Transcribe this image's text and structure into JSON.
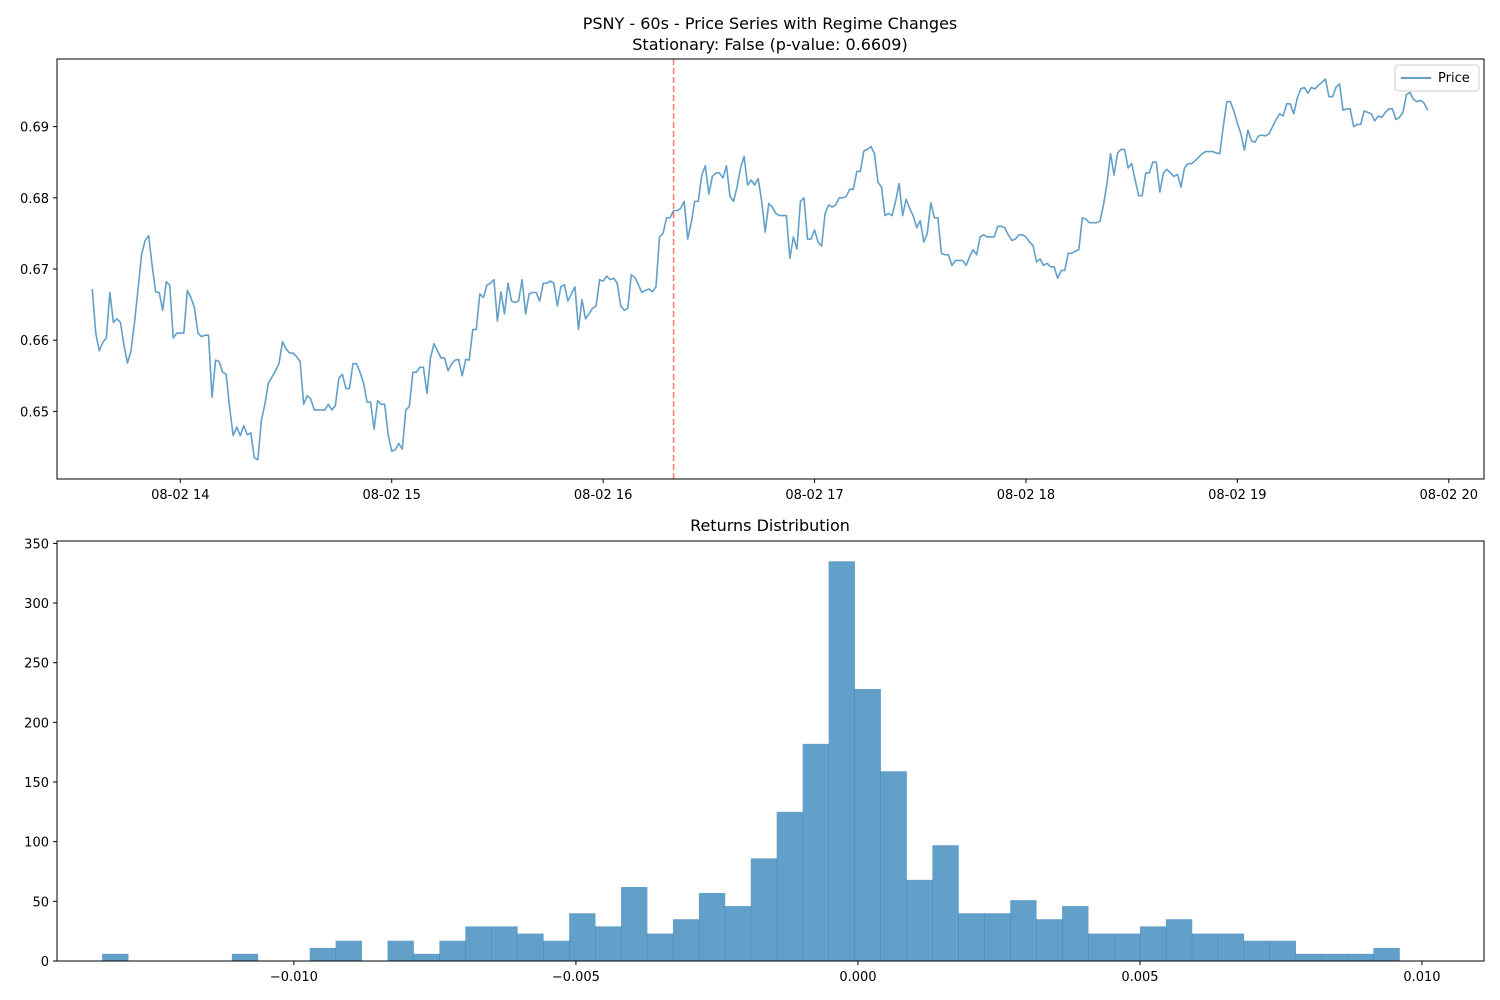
{
  "figure": {
    "background": "#ffffff",
    "accent_color": "#1f77b4",
    "regime_line_color": "#ff0000"
  },
  "chart_data": [
    {
      "type": "line",
      "title": "PSNY - 60s - Price Series with Regime Changes",
      "subtitle": "Stationary: False (p-value: 0.6609)",
      "xlabel": "",
      "ylabel": "",
      "x_start": "08-02 13:35",
      "x_step_minutes": 1,
      "x_ticks": [
        {
          "t": "08-02 14:00",
          "label": "08-02 14"
        },
        {
          "t": "08-02 15:00",
          "label": "08-02 15"
        },
        {
          "t": "08-02 16:00",
          "label": "08-02 16"
        },
        {
          "t": "08-02 17:00",
          "label": "08-02 17"
        },
        {
          "t": "08-02 18:00",
          "label": "08-02 18"
        },
        {
          "t": "08-02 19:00",
          "label": "08-02 19"
        },
        {
          "t": "08-02 20:00",
          "label": "08-02 20"
        }
      ],
      "xlim": [
        "08-02 13:25",
        "08-02 20:10"
      ],
      "ylim": [
        0.6405,
        0.6995
      ],
      "y_ticks": [
        {
          "v": 0.65,
          "label": "0.65"
        },
        {
          "v": 0.66,
          "label": "0.66"
        },
        {
          "v": 0.67,
          "label": "0.67"
        },
        {
          "v": 0.68,
          "label": "0.68"
        },
        {
          "v": 0.69,
          "label": "0.69"
        }
      ],
      "grid": false,
      "legend": {
        "position": "top-right",
        "entries": [
          "Price"
        ]
      },
      "regime_changes": [
        "08-02 16:20"
      ],
      "series": [
        {
          "name": "Price",
          "color": "#1f77b4",
          "values": [
            0.6672,
            0.661,
            0.6585,
            0.6597,
            0.6603,
            0.6667,
            0.6625,
            0.663,
            0.6625,
            0.6593,
            0.6568,
            0.6585,
            0.6625,
            0.6672,
            0.672,
            0.674,
            0.6747,
            0.6705,
            0.6668,
            0.6667,
            0.6642,
            0.6682,
            0.6677,
            0.6603,
            0.661,
            0.661,
            0.661,
            0.667,
            0.666,
            0.6646,
            0.661,
            0.6605,
            0.6607,
            0.6607,
            0.652,
            0.6572,
            0.657,
            0.6555,
            0.6552,
            0.6505,
            0.6466,
            0.6478,
            0.6466,
            0.648,
            0.6467,
            0.647,
            0.6435,
            0.6432,
            0.6487,
            0.651,
            0.654,
            0.6548,
            0.6557,
            0.6567,
            0.6598,
            0.6588,
            0.6582,
            0.6582,
            0.6577,
            0.657,
            0.651,
            0.6522,
            0.6518,
            0.6502,
            0.6502,
            0.6502,
            0.6502,
            0.651,
            0.6502,
            0.6508,
            0.6547,
            0.6552,
            0.6532,
            0.6532,
            0.6567,
            0.6567,
            0.6555,
            0.654,
            0.6513,
            0.6513,
            0.6475,
            0.6515,
            0.651,
            0.651,
            0.6467,
            0.6444,
            0.6446,
            0.6455,
            0.6447,
            0.6502,
            0.6507,
            0.6555,
            0.6555,
            0.6562,
            0.6562,
            0.6525,
            0.6575,
            0.6595,
            0.6585,
            0.6575,
            0.6575,
            0.6557,
            0.6567,
            0.6572,
            0.6573,
            0.655,
            0.6573,
            0.6572,
            0.6615,
            0.6615,
            0.6665,
            0.666,
            0.6677,
            0.668,
            0.6685,
            0.6627,
            0.6668,
            0.6637,
            0.668,
            0.6655,
            0.6653,
            0.6655,
            0.6685,
            0.6637,
            0.6665,
            0.6667,
            0.6667,
            0.6655,
            0.668,
            0.668,
            0.6683,
            0.668,
            0.6648,
            0.6675,
            0.6678,
            0.6655,
            0.6665,
            0.6675,
            0.6615,
            0.6657,
            0.663,
            0.6637,
            0.6645,
            0.6648,
            0.6685,
            0.6683,
            0.669,
            0.6685,
            0.6687,
            0.668,
            0.6648,
            0.6642,
            0.6645,
            0.6692,
            0.6688,
            0.6678,
            0.6667,
            0.667,
            0.6672,
            0.6668,
            0.6675,
            0.6745,
            0.675,
            0.6772,
            0.6772,
            0.6782,
            0.6782,
            0.6785,
            0.6795,
            0.6742,
            0.6765,
            0.6795,
            0.6795,
            0.6832,
            0.6845,
            0.6805,
            0.683,
            0.6835,
            0.6835,
            0.6828,
            0.6845,
            0.6802,
            0.6795,
            0.6815,
            0.6842,
            0.6858,
            0.6818,
            0.6825,
            0.6818,
            0.6827,
            0.6795,
            0.6752,
            0.6792,
            0.6787,
            0.6778,
            0.6775,
            0.6775,
            0.6775,
            0.6715,
            0.6745,
            0.6728,
            0.6795,
            0.68,
            0.6742,
            0.6742,
            0.6755,
            0.6738,
            0.6732,
            0.6778,
            0.679,
            0.6787,
            0.679,
            0.68,
            0.68,
            0.6802,
            0.6812,
            0.6812,
            0.6837,
            0.6837,
            0.6866,
            0.6868,
            0.6872,
            0.6862,
            0.6822,
            0.6815,
            0.6775,
            0.6778,
            0.6775,
            0.6795,
            0.682,
            0.6775,
            0.6798,
            0.6785,
            0.6775,
            0.6758,
            0.6768,
            0.6738,
            0.675,
            0.6793,
            0.6772,
            0.6772,
            0.6722,
            0.672,
            0.672,
            0.6705,
            0.6712,
            0.6712,
            0.6712,
            0.6705,
            0.6717,
            0.6727,
            0.672,
            0.6745,
            0.6748,
            0.6745,
            0.6745,
            0.6745,
            0.676,
            0.676,
            0.6758,
            0.6748,
            0.674,
            0.6742,
            0.6748,
            0.6748,
            0.6745,
            0.6738,
            0.6733,
            0.671,
            0.6714,
            0.6705,
            0.6708,
            0.6703,
            0.6703,
            0.6687,
            0.6698,
            0.6698,
            0.6722,
            0.6722,
            0.6725,
            0.6727,
            0.6772,
            0.677,
            0.6765,
            0.6765,
            0.6765,
            0.6767,
            0.679,
            0.682,
            0.6862,
            0.6832,
            0.6863,
            0.6868,
            0.6868,
            0.6842,
            0.6848,
            0.6825,
            0.6803,
            0.6803,
            0.6835,
            0.6835,
            0.685,
            0.685,
            0.6808,
            0.6835,
            0.684,
            0.6835,
            0.683,
            0.6833,
            0.6815,
            0.6842,
            0.6848,
            0.6848,
            0.6852,
            0.6857,
            0.6862,
            0.6865,
            0.6865,
            0.6865,
            0.6863,
            0.6862,
            0.69,
            0.6935,
            0.6935,
            0.6922,
            0.6905,
            0.689,
            0.6867,
            0.6895,
            0.688,
            0.6878,
            0.6887,
            0.6888,
            0.6887,
            0.689,
            0.69,
            0.691,
            0.6918,
            0.6915,
            0.6932,
            0.6932,
            0.6918,
            0.694,
            0.6953,
            0.6955,
            0.6947,
            0.6955,
            0.6953,
            0.6958,
            0.6962,
            0.6967,
            0.6942,
            0.6942,
            0.6955,
            0.696,
            0.6923,
            0.6925,
            0.6925,
            0.69,
            0.6903,
            0.6903,
            0.6922,
            0.692,
            0.6918,
            0.6908,
            0.6915,
            0.6913,
            0.692,
            0.6925,
            0.6925,
            0.691,
            0.6913,
            0.692,
            0.6945,
            0.6948,
            0.6938,
            0.6935,
            0.6937,
            0.6933,
            0.6923
          ]
        }
      ]
    },
    {
      "type": "bar",
      "title": "Returns Distribution",
      "xlabel": "",
      "ylabel": "",
      "bin_edges_start": -0.0134,
      "bin_width": 0.00046,
      "xlim": [
        -0.0142,
        0.0111
      ],
      "ylim": [
        0,
        352
      ],
      "x_ticks": [
        {
          "v": -0.01,
          "label": "−0.010"
        },
        {
          "v": -0.005,
          "label": "−0.005"
        },
        {
          "v": 0.0,
          "label": "0.000"
        },
        {
          "v": 0.005,
          "label": "0.005"
        },
        {
          "v": 0.01,
          "label": "0.010"
        }
      ],
      "y_ticks": [
        {
          "v": 0,
          "label": "0"
        },
        {
          "v": 50,
          "label": "50"
        },
        {
          "v": 100,
          "label": "100"
        },
        {
          "v": 150,
          "label": "150"
        },
        {
          "v": 200,
          "label": "200"
        },
        {
          "v": 250,
          "label": "250"
        },
        {
          "v": 300,
          "label": "300"
        },
        {
          "v": 350,
          "label": "350"
        }
      ],
      "grid": false,
      "color": "#1f77b4",
      "values": [
        6,
        0,
        0,
        0,
        0,
        6,
        0,
        0,
        11,
        17,
        0,
        17,
        6,
        17,
        29,
        29,
        23,
        17,
        40,
        29,
        62,
        23,
        35,
        57,
        46,
        86,
        125,
        182,
        335,
        228,
        159,
        68,
        97,
        40,
        40,
        51,
        35,
        46,
        23,
        23,
        29,
        35,
        23,
        23,
        17,
        17,
        6,
        6,
        6,
        11
      ]
    }
  ]
}
